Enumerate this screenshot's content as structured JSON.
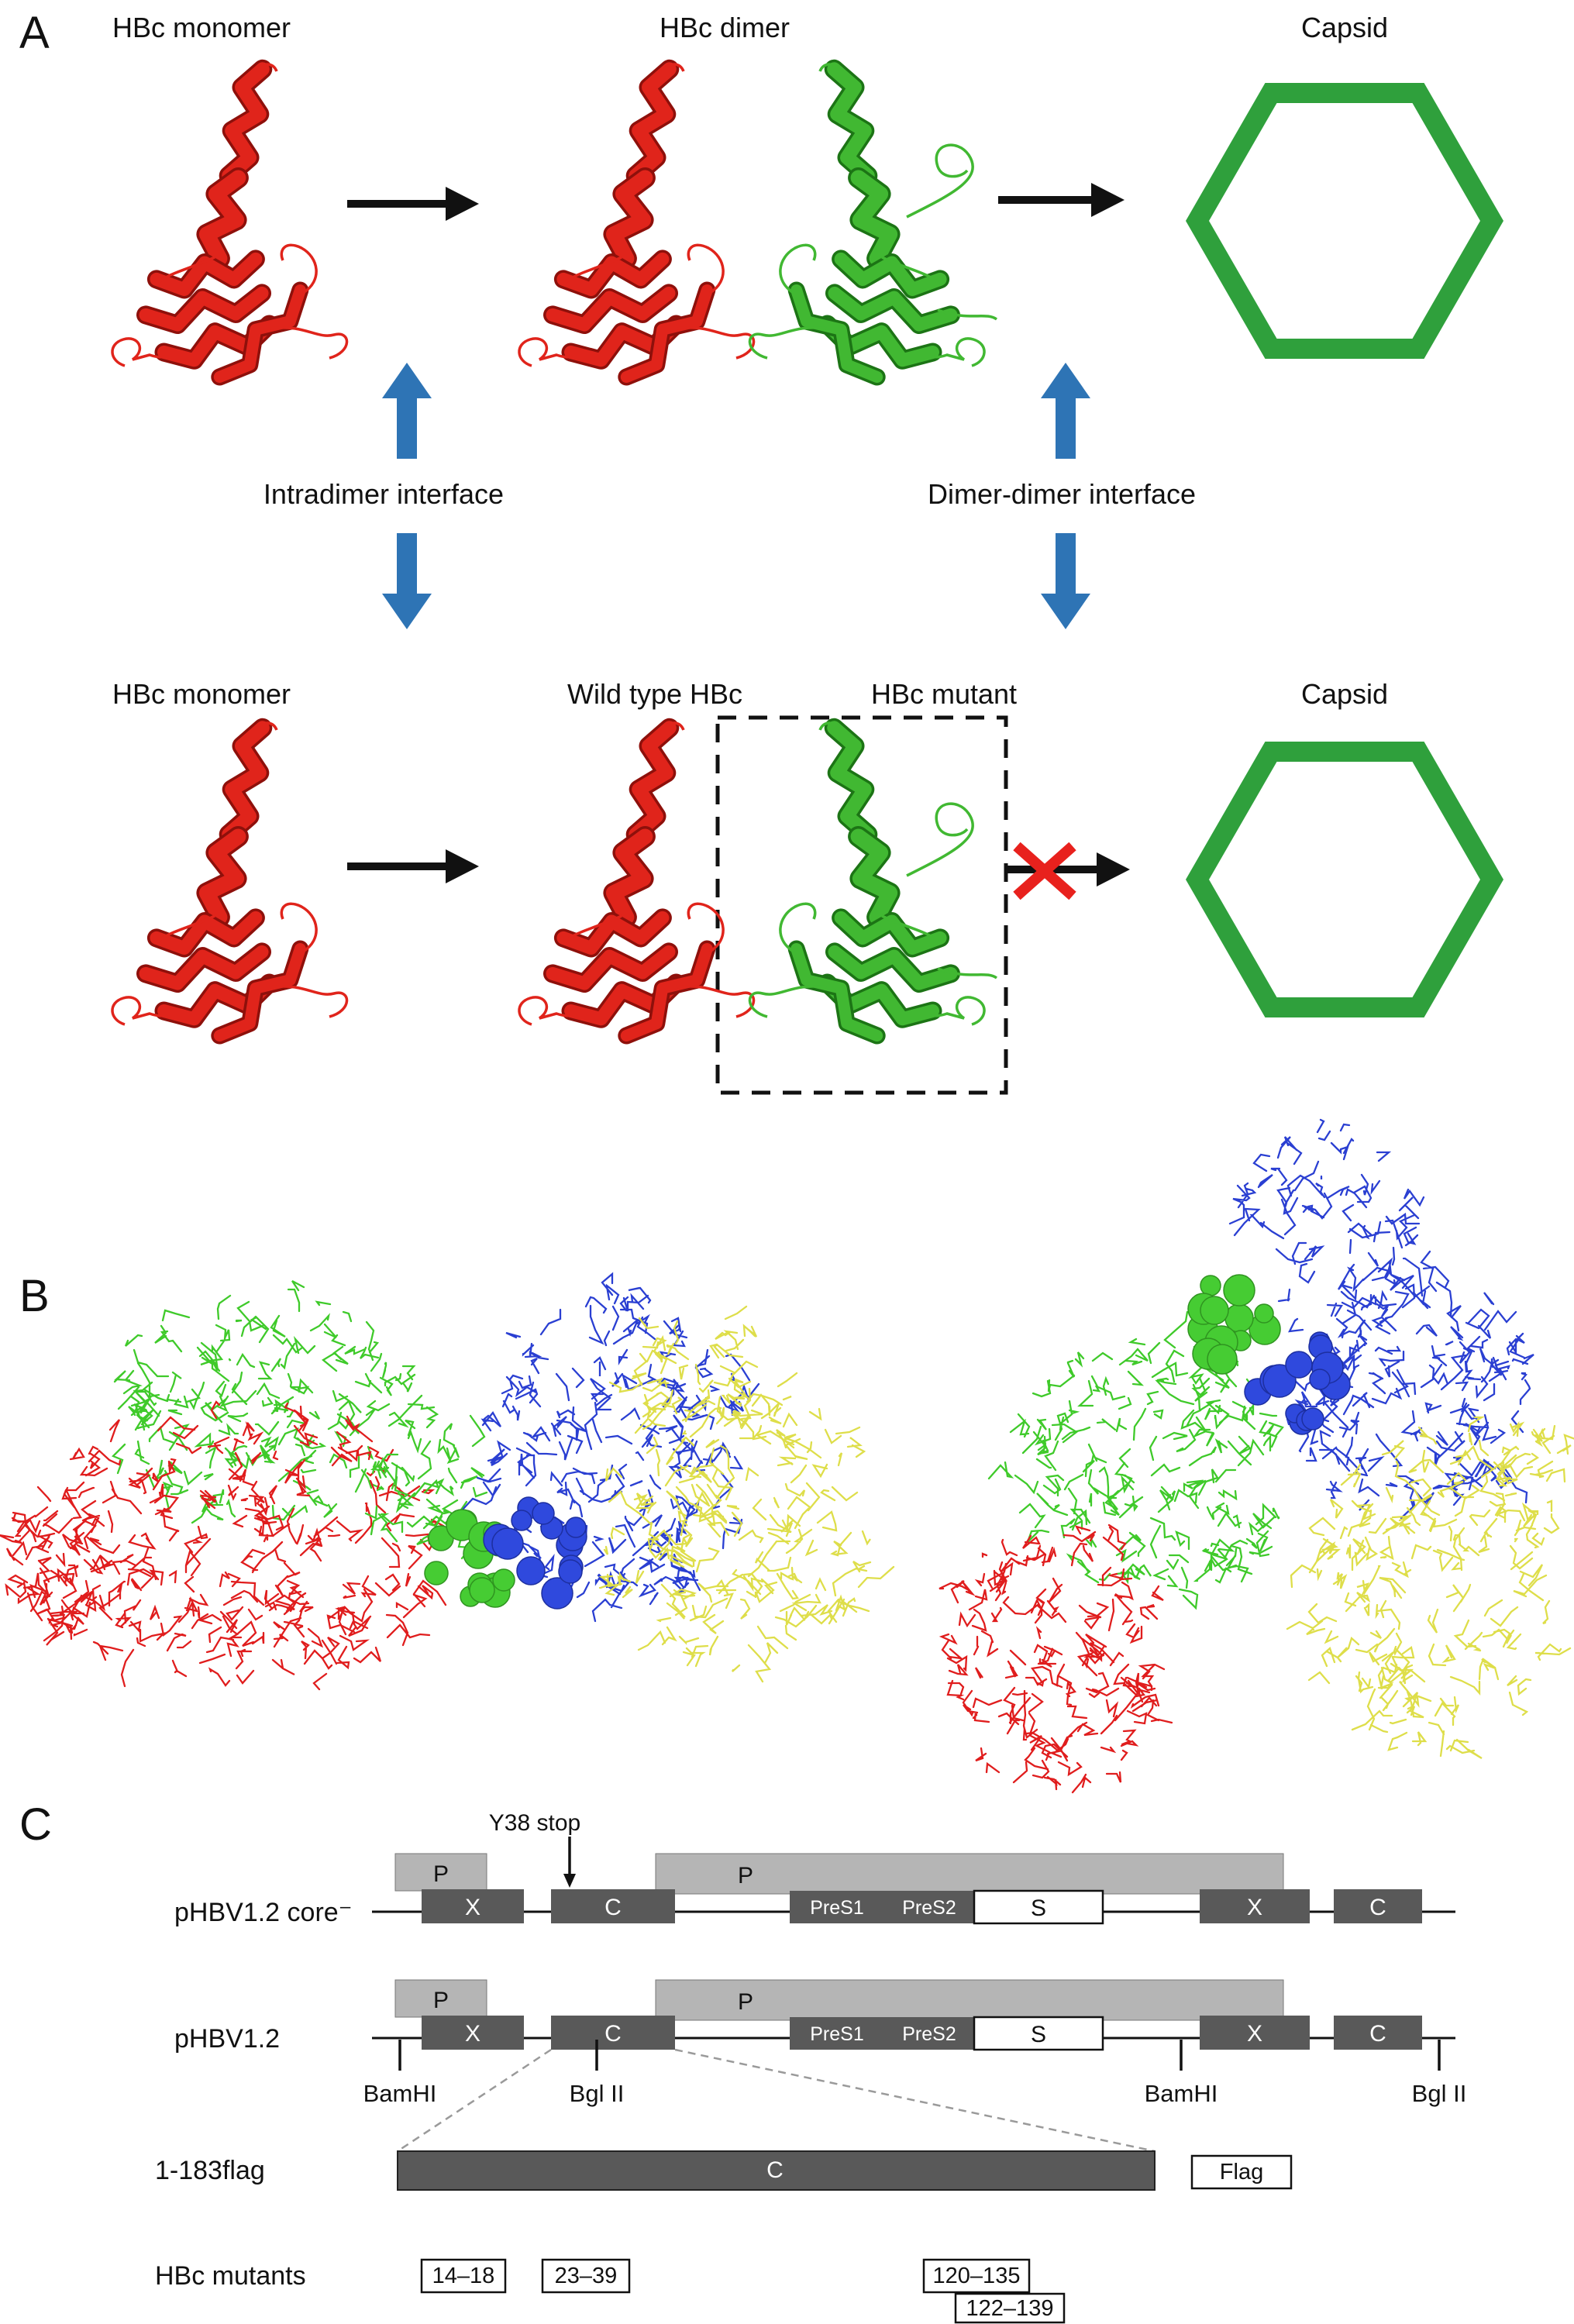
{
  "panel_a": {
    "label": "A",
    "row1_labels": {
      "monomer": "HBc monomer",
      "dimer": "HBc dimer",
      "capsid": "Capsid"
    },
    "row2_labels": {
      "monomer": "HBc monomer",
      "wild_type": "Wild type HBc",
      "mutant": "HBc mutant",
      "capsid": "Capsid"
    },
    "interface_labels": {
      "intradimer": "Intradimer interface",
      "dimer_dimer": "Dimer-dimer interface"
    },
    "colors": {
      "monomer_fill": "#e0241b",
      "monomer_dark": "#8e100b",
      "partner_fill": "#41b832",
      "partner_dark": "#1c7415",
      "capsid_stroke": "#2fa03c",
      "black_arrow": "#111111",
      "blue_arrow": "#2e74b5",
      "cross_red": "#e8211d"
    }
  },
  "panel_b": {
    "label": "B",
    "chain_colors": {
      "red": "#e01d1d",
      "green": "#3fca2a",
      "blue": "#2a3fd2",
      "yellow": "#dede4a"
    },
    "sphere_colors": {
      "green": "#46cc33",
      "green_dark": "#2f9420",
      "blue": "#2f49dd",
      "blue_dark": "#1d2fa0"
    }
  },
  "panel_c": {
    "label": "C",
    "y38_label": "Y38 stop",
    "construct1_label": "pHBV1.2 core⁻",
    "construct2_label": "pHBV1.2",
    "construct3_label": "1-183flag",
    "mutants_label": "HBc mutants",
    "genes": {
      "p": "P",
      "x": "X",
      "c": "C",
      "pres1": "PreS1",
      "pres2": "PreS2",
      "s": "S",
      "flag": "Flag"
    },
    "sites": [
      "BamHI",
      "Bgl II",
      "BamHI",
      "Bgl II"
    ],
    "mutants": [
      "14–18",
      "23–39",
      "120–135",
      "122–139"
    ],
    "colors": {
      "dark_box": "#595959",
      "light_box": "#b5b5b5",
      "line": "#111111"
    }
  }
}
